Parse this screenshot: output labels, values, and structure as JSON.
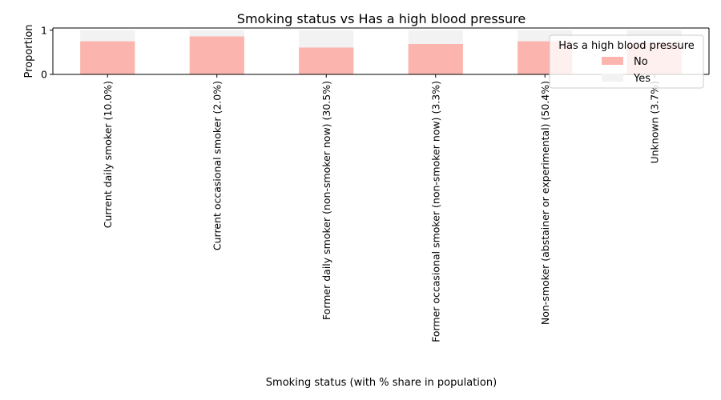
{
  "chart_data": {
    "type": "bar",
    "stacked": true,
    "title": "Smoking status vs Has a high blood pressure",
    "xlabel": "Smoking status (with % share in population)",
    "ylabel": "Proportion",
    "ylim": [
      0,
      1.05
    ],
    "yticks": [
      0,
      1
    ],
    "grid": false,
    "categories": [
      "Current daily smoker (10.0%)",
      "Current occasional smoker (2.0%)",
      "Former daily smoker (non-smoker now) (30.5%)",
      "Former occasional smoker (non-smoker now) (3.3%)",
      "Non-smoker (abstainer or experimental) (50.4%)",
      "Unknown (3.7%)"
    ],
    "series": [
      {
        "name": "No",
        "color": "#fbb4ae",
        "values": [
          0.75,
          0.86,
          0.61,
          0.69,
          0.75,
          0.72
        ]
      },
      {
        "name": "Yes",
        "color": "#f2f2f2",
        "values": [
          0.25,
          0.14,
          0.39,
          0.31,
          0.25,
          0.28
        ]
      }
    ],
    "legend": {
      "title": "Has a high blood pressure",
      "placement": "top-right"
    }
  }
}
